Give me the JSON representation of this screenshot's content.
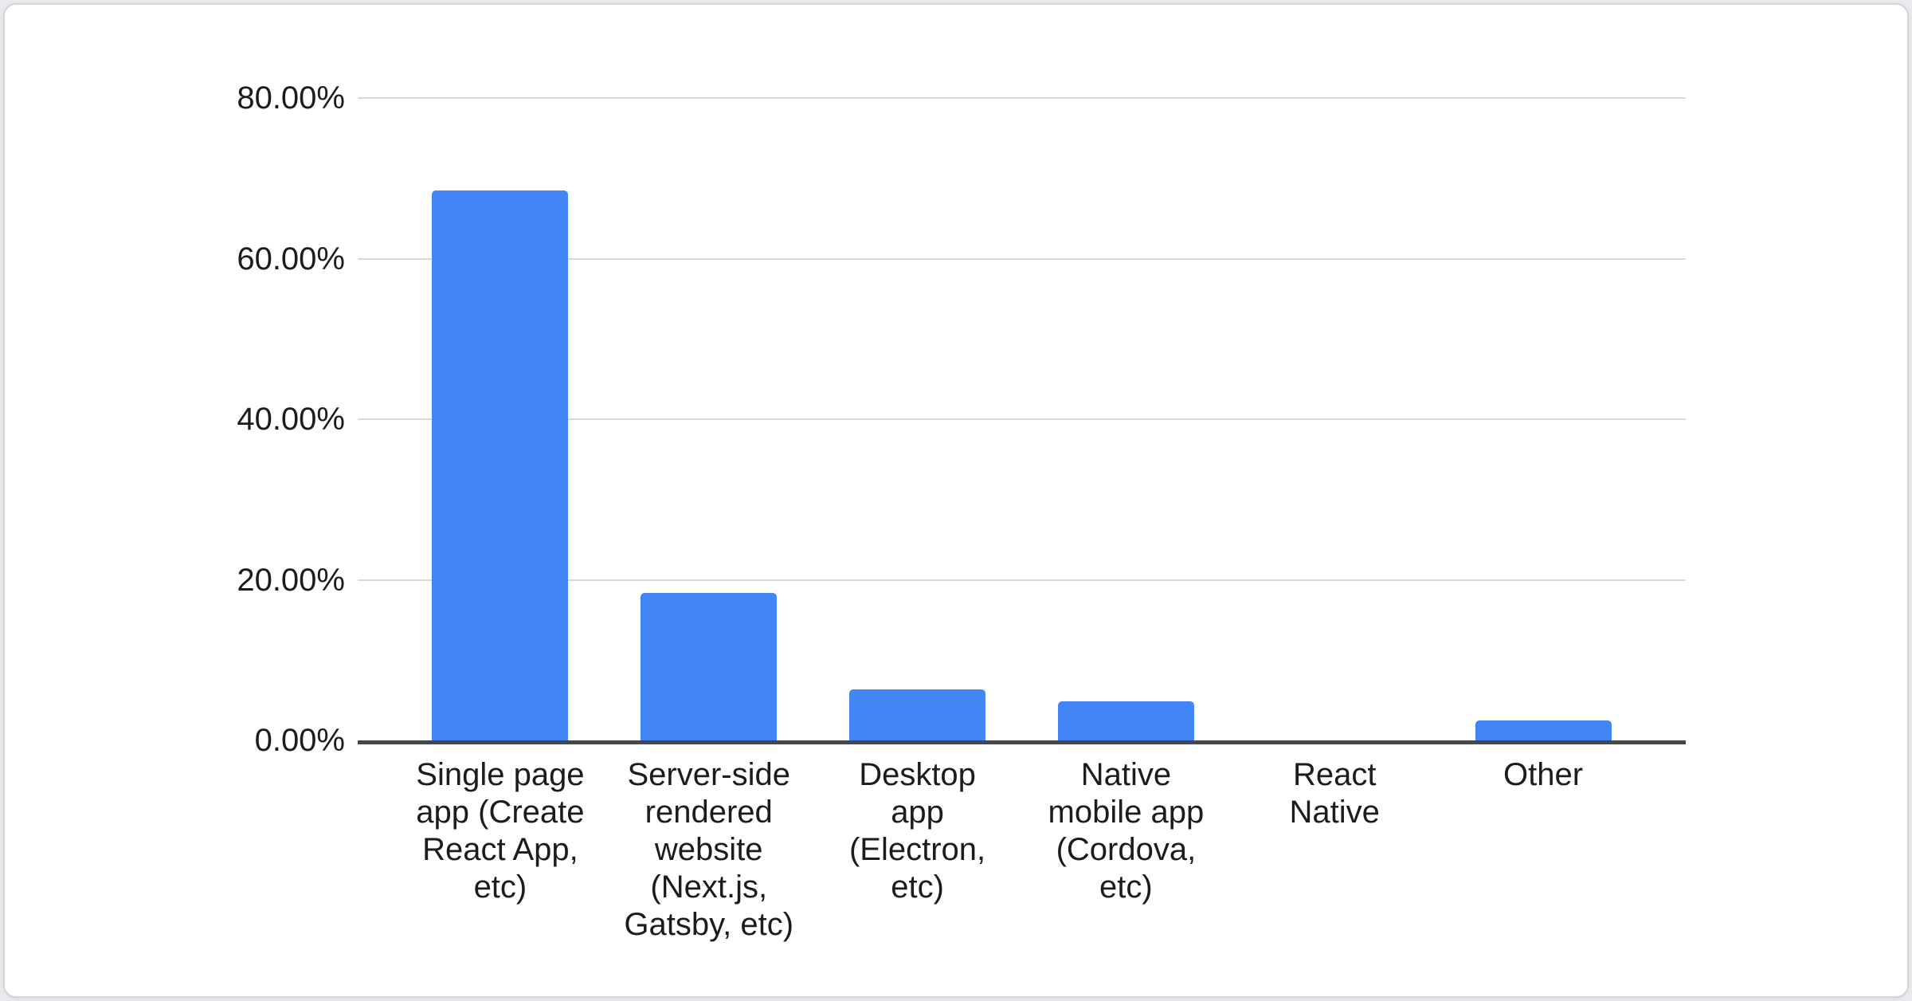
{
  "chart_data": {
    "type": "bar",
    "title": "",
    "xlabel": "",
    "ylabel": "",
    "categories": [
      "Single page app (Create React App, etc)",
      "Server-side rendered website (Next.js, Gatsby, etc)",
      "Desktop app (Electron, etc)",
      "Native mobile app (Cordova, etc)",
      "React Native",
      "Other"
    ],
    "category_display_lines": [
      [
        "Single page",
        "app (Create",
        "React App,",
        "etc)"
      ],
      [
        "Server-side",
        "rendered",
        "website",
        "(Next.js,",
        "Gatsby, etc)"
      ],
      [
        "Desktop",
        "app",
        "(Electron,",
        "etc)"
      ],
      [
        "Native",
        "mobile app",
        "(Cordova,",
        "etc)"
      ],
      [
        "React",
        "Native"
      ],
      [
        "Other"
      ]
    ],
    "values": [
      68.5,
      18.4,
      6.4,
      4.9,
      0,
      2.5
    ],
    "unit": "%",
    "ylim": [
      0,
      80
    ],
    "y_ticks": [
      {
        "value": 80,
        "label": "80.00%"
      },
      {
        "value": 60,
        "label": "60.00%"
      },
      {
        "value": 40,
        "label": "40.00%"
      },
      {
        "value": 20,
        "label": "20.00%"
      },
      {
        "value": 0,
        "label": "0.00%"
      }
    ],
    "grid": true,
    "legend": "none",
    "colors": {
      "bar": "#4285F4",
      "gridline": "#d9d9d9",
      "axis_line": "#43484c",
      "text": "#1c1c1c",
      "card_background": "#ffffff",
      "page_background": "#e8eaed"
    }
  }
}
